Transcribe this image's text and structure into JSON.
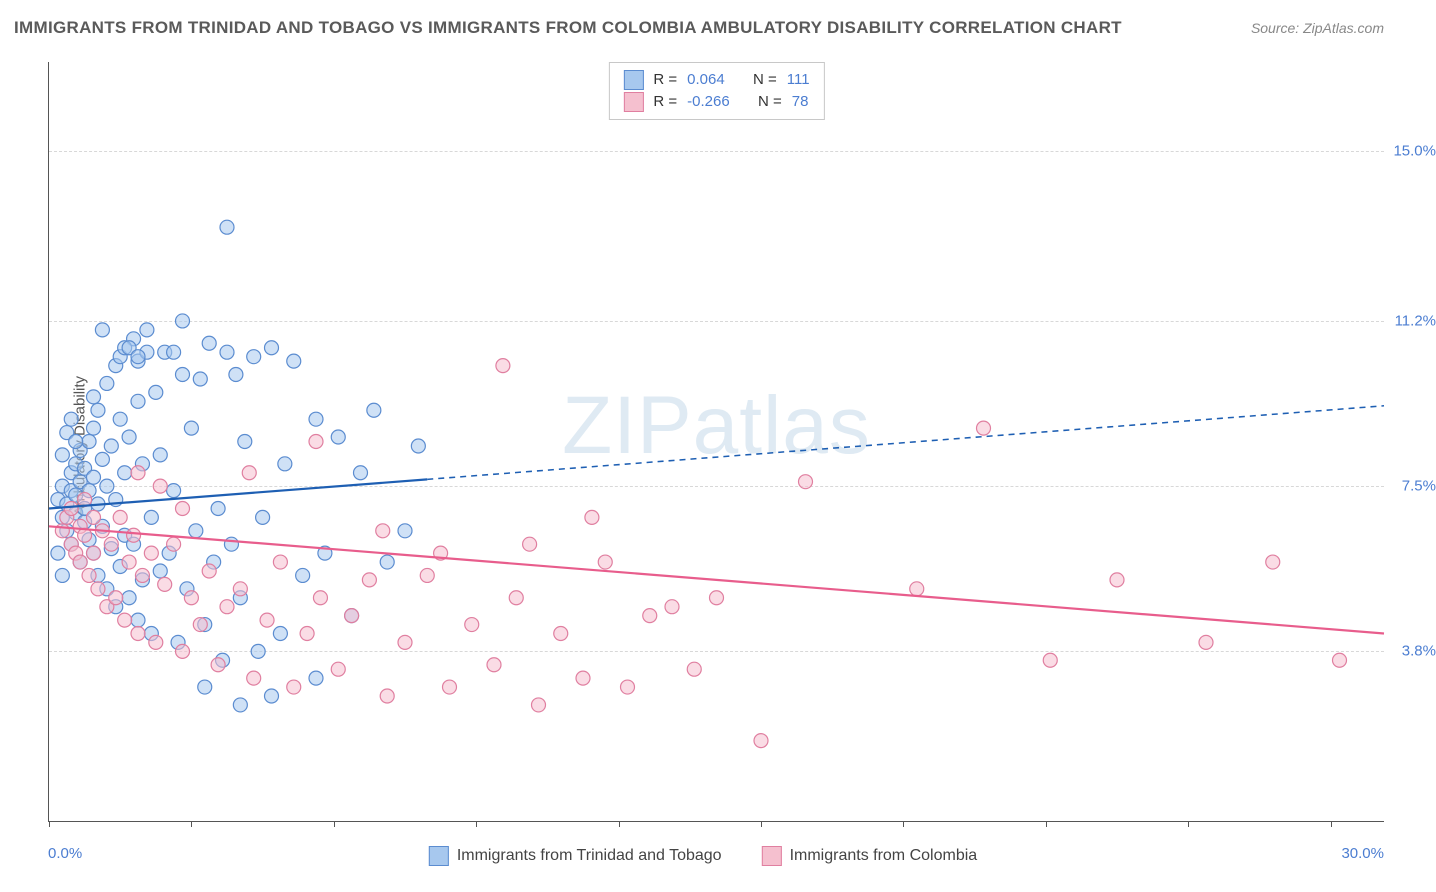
{
  "title": "IMMIGRANTS FROM TRINIDAD AND TOBAGO VS IMMIGRANTS FROM COLOMBIA AMBULATORY DISABILITY CORRELATION CHART",
  "source": "Source: ZipAtlas.com",
  "watermark": "ZIPatlas",
  "ylabel": "Ambulatory Disability",
  "chart": {
    "type": "scatter",
    "xlim": [
      0,
      30
    ],
    "ylim": [
      0,
      17
    ],
    "x_min_label": "0.0%",
    "x_max_label": "30.0%",
    "y_ticks": [
      3.8,
      7.5,
      11.2,
      15.0
    ],
    "y_tick_labels": [
      "3.8%",
      "7.5%",
      "11.2%",
      "15.0%"
    ],
    "x_ticks": [
      0,
      3.2,
      6.4,
      9.6,
      12.8,
      16.0,
      19.2,
      22.4,
      25.6,
      28.8
    ],
    "grid_color": "#d8d8d8",
    "background_color": "#ffffff",
    "marker_radius": 7,
    "marker_stroke_width": 1.2,
    "trend_line_width": 2.2,
    "series": [
      {
        "name": "Immigrants from Trinidad and Tobago",
        "short": "trinidad",
        "fill": "#a7c8ee",
        "stroke": "#5b8cd0",
        "fill_opacity": 0.55,
        "r_value": "0.064",
        "n_value": "111",
        "trend": {
          "color": "#1e5fb3",
          "y_at_x0": 7.0,
          "y_at_xmax": 9.3,
          "solid_until_x": 8.5
        },
        "points": [
          [
            0.2,
            7.2
          ],
          [
            0.3,
            7.5
          ],
          [
            0.3,
            6.8
          ],
          [
            0.4,
            7.1
          ],
          [
            0.4,
            6.5
          ],
          [
            0.5,
            7.8
          ],
          [
            0.5,
            6.2
          ],
          [
            0.5,
            7.4
          ],
          [
            0.6,
            8.0
          ],
          [
            0.6,
            6.9
          ],
          [
            0.6,
            7.3
          ],
          [
            0.7,
            7.6
          ],
          [
            0.7,
            5.8
          ],
          [
            0.7,
            8.3
          ],
          [
            0.8,
            6.7
          ],
          [
            0.8,
            7.9
          ],
          [
            0.8,
            7.0
          ],
          [
            0.9,
            8.5
          ],
          [
            0.9,
            6.3
          ],
          [
            0.9,
            7.4
          ],
          [
            1.0,
            8.8
          ],
          [
            1.0,
            6.0
          ],
          [
            1.0,
            7.7
          ],
          [
            1.1,
            9.2
          ],
          [
            1.1,
            5.5
          ],
          [
            1.1,
            7.1
          ],
          [
            1.2,
            8.1
          ],
          [
            1.2,
            6.6
          ],
          [
            1.3,
            9.8
          ],
          [
            1.3,
            5.2
          ],
          [
            1.3,
            7.5
          ],
          [
            1.4,
            8.4
          ],
          [
            1.4,
            6.1
          ],
          [
            1.5,
            10.2
          ],
          [
            1.5,
            4.8
          ],
          [
            1.5,
            7.2
          ],
          [
            1.6,
            9.0
          ],
          [
            1.6,
            5.7
          ],
          [
            1.7,
            7.8
          ],
          [
            1.7,
            6.4
          ],
          [
            1.8,
            8.6
          ],
          [
            1.8,
            5.0
          ],
          [
            1.9,
            10.8
          ],
          [
            1.9,
            6.2
          ],
          [
            2.0,
            9.4
          ],
          [
            2.0,
            4.5
          ],
          [
            2.1,
            8.0
          ],
          [
            2.1,
            5.4
          ],
          [
            2.2,
            11.0
          ],
          [
            2.3,
            6.8
          ],
          [
            2.3,
            4.2
          ],
          [
            2.4,
            9.6
          ],
          [
            2.5,
            5.6
          ],
          [
            2.5,
            8.2
          ],
          [
            2.6,
            10.5
          ],
          [
            2.7,
            6.0
          ],
          [
            2.8,
            7.4
          ],
          [
            2.9,
            4.0
          ],
          [
            3.0,
            11.2
          ],
          [
            3.1,
            5.2
          ],
          [
            3.2,
            8.8
          ],
          [
            3.3,
            6.5
          ],
          [
            3.4,
            9.9
          ],
          [
            3.5,
            4.4
          ],
          [
            3.6,
            10.7
          ],
          [
            3.7,
            5.8
          ],
          [
            3.8,
            7.0
          ],
          [
            3.9,
            3.6
          ],
          [
            4.0,
            13.3
          ],
          [
            4.1,
            6.2
          ],
          [
            4.2,
            10.0
          ],
          [
            4.3,
            5.0
          ],
          [
            4.4,
            8.5
          ],
          [
            4.6,
            10.4
          ],
          [
            4.7,
            3.8
          ],
          [
            4.8,
            6.8
          ],
          [
            5.0,
            10.6
          ],
          [
            5.2,
            4.2
          ],
          [
            5.3,
            8.0
          ],
          [
            5.5,
            10.3
          ],
          [
            5.7,
            5.5
          ],
          [
            6.0,
            9.0
          ],
          [
            6.2,
            6.0
          ],
          [
            6.5,
            8.6
          ],
          [
            6.8,
            4.6
          ],
          [
            7.0,
            7.8
          ],
          [
            7.3,
            9.2
          ],
          [
            7.6,
            5.8
          ],
          [
            8.0,
            6.5
          ],
          [
            8.3,
            8.4
          ],
          [
            2.0,
            10.3
          ],
          [
            2.2,
            10.5
          ],
          [
            1.6,
            10.4
          ],
          [
            1.7,
            10.6
          ],
          [
            0.4,
            8.7
          ],
          [
            0.5,
            9.0
          ],
          [
            1.0,
            9.5
          ],
          [
            1.2,
            11.0
          ],
          [
            2.8,
            10.5
          ],
          [
            3.0,
            10.0
          ],
          [
            1.8,
            10.6
          ],
          [
            2.0,
            10.4
          ],
          [
            4.0,
            10.5
          ],
          [
            5.0,
            2.8
          ],
          [
            4.3,
            2.6
          ],
          [
            3.5,
            3.0
          ],
          [
            6.0,
            3.2
          ],
          [
            0.3,
            8.2
          ],
          [
            0.6,
            8.5
          ],
          [
            0.2,
            6.0
          ],
          [
            0.3,
            5.5
          ]
        ]
      },
      {
        "name": "Immigrants from Colombia",
        "short": "colombia",
        "fill": "#f5c0cf",
        "stroke": "#e07fa0",
        "fill_opacity": 0.55,
        "r_value": "-0.266",
        "n_value": "78",
        "trend": {
          "color": "#e85d8c",
          "y_at_x0": 6.6,
          "y_at_xmax": 4.2,
          "solid_until_x": 30
        },
        "points": [
          [
            0.3,
            6.5
          ],
          [
            0.4,
            6.8
          ],
          [
            0.5,
            6.2
          ],
          [
            0.5,
            7.0
          ],
          [
            0.6,
            6.0
          ],
          [
            0.7,
            6.6
          ],
          [
            0.7,
            5.8
          ],
          [
            0.8,
            6.4
          ],
          [
            0.8,
            7.2
          ],
          [
            0.9,
            5.5
          ],
          [
            1.0,
            6.8
          ],
          [
            1.0,
            6.0
          ],
          [
            1.1,
            5.2
          ],
          [
            1.2,
            6.5
          ],
          [
            1.3,
            4.8
          ],
          [
            1.4,
            6.2
          ],
          [
            1.5,
            5.0
          ],
          [
            1.6,
            6.8
          ],
          [
            1.7,
            4.5
          ],
          [
            1.8,
            5.8
          ],
          [
            1.9,
            6.4
          ],
          [
            2.0,
            4.2
          ],
          [
            2.1,
            5.5
          ],
          [
            2.3,
            6.0
          ],
          [
            2.4,
            4.0
          ],
          [
            2.6,
            5.3
          ],
          [
            2.8,
            6.2
          ],
          [
            3.0,
            3.8
          ],
          [
            3.2,
            5.0
          ],
          [
            3.4,
            4.4
          ],
          [
            3.6,
            5.6
          ],
          [
            3.8,
            3.5
          ],
          [
            4.0,
            4.8
          ],
          [
            4.3,
            5.2
          ],
          [
            4.6,
            3.2
          ],
          [
            4.9,
            4.5
          ],
          [
            5.2,
            5.8
          ],
          [
            5.5,
            3.0
          ],
          [
            5.8,
            4.2
          ],
          [
            6.1,
            5.0
          ],
          [
            6.5,
            3.4
          ],
          [
            6.8,
            4.6
          ],
          [
            7.2,
            5.4
          ],
          [
            7.6,
            2.8
          ],
          [
            8.0,
            4.0
          ],
          [
            8.5,
            5.5
          ],
          [
            9.0,
            3.0
          ],
          [
            9.5,
            4.4
          ],
          [
            10.0,
            3.5
          ],
          [
            10.5,
            5.0
          ],
          [
            11.0,
            2.6
          ],
          [
            11.5,
            4.2
          ],
          [
            12.0,
            3.2
          ],
          [
            12.5,
            5.8
          ],
          [
            13.0,
            3.0
          ],
          [
            13.5,
            4.6
          ],
          [
            14.0,
            4.8
          ],
          [
            14.5,
            3.4
          ],
          [
            15.0,
            5.0
          ],
          [
            16.0,
            1.8
          ],
          [
            17.0,
            7.6
          ],
          [
            19.5,
            5.2
          ],
          [
            21.0,
            8.8
          ],
          [
            22.5,
            3.6
          ],
          [
            24.0,
            5.4
          ],
          [
            26.0,
            4.0
          ],
          [
            27.5,
            5.8
          ],
          [
            29.0,
            3.6
          ],
          [
            10.2,
            10.2
          ],
          [
            6.0,
            8.5
          ],
          [
            4.5,
            7.8
          ],
          [
            3.0,
            7.0
          ],
          [
            2.5,
            7.5
          ],
          [
            2.0,
            7.8
          ],
          [
            7.5,
            6.5
          ],
          [
            8.8,
            6.0
          ],
          [
            10.8,
            6.2
          ],
          [
            12.2,
            6.8
          ]
        ]
      }
    ]
  },
  "legend_top": {
    "r_label": "R =",
    "n_label": "N ="
  },
  "legend_bottom": {
    "items": [
      "Immigrants from Trinidad and Tobago",
      "Immigrants from Colombia"
    ]
  }
}
